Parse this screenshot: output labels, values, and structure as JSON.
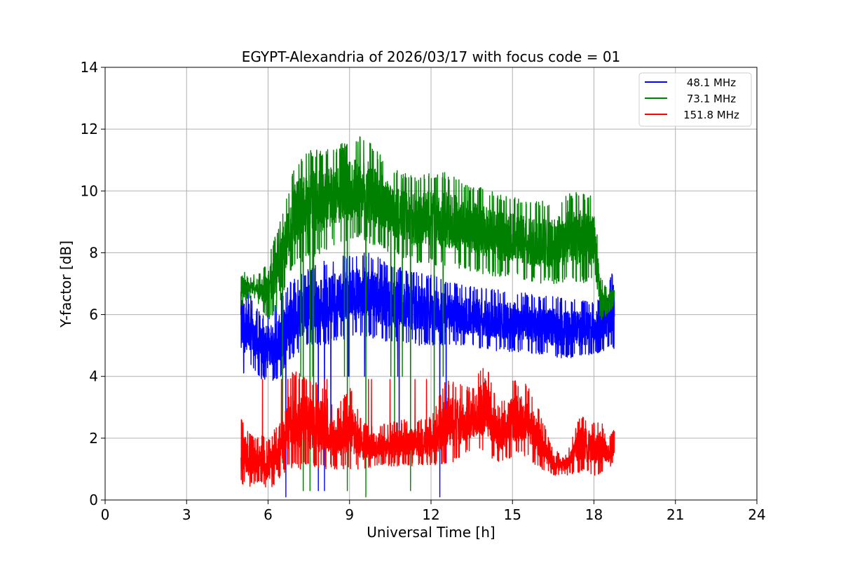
{
  "chart_data": {
    "type": "line",
    "title": "EGYPT-Alexandria of 2026/03/17 with focus code = 01",
    "xlabel": "Universal Time [h]",
    "ylabel": "Y-factor [dB]",
    "xlim": [
      0,
      24
    ],
    "ylim": [
      0,
      14
    ],
    "xticks": [
      0,
      3,
      6,
      9,
      12,
      15,
      18,
      21,
      24
    ],
    "yticks": [
      0,
      2,
      4,
      6,
      8,
      10,
      12,
      14
    ],
    "grid": true,
    "legend_position": "top-right",
    "series": [
      {
        "name": "48.1 MHz",
        "color": "#0000ff",
        "x": [
          5.0,
          5.25,
          5.5,
          5.75,
          6.0,
          6.25,
          6.5,
          6.75,
          7.0,
          7.5,
          8.0,
          8.5,
          9.0,
          9.5,
          10.0,
          10.5,
          11.0,
          11.5,
          12.0,
          12.5,
          13.0,
          13.5,
          14.0,
          14.5,
          15.0,
          15.5,
          16.0,
          16.5,
          17.0,
          17.5,
          18.0,
          18.25,
          18.5,
          18.75
        ],
        "low": [
          3.8,
          4.4,
          4.2,
          3.9,
          3.8,
          3.9,
          4.0,
          4.4,
          4.7,
          4.9,
          5.0,
          5.1,
          5.2,
          5.3,
          5.2,
          5.1,
          5.1,
          5.0,
          5.0,
          5.0,
          5.0,
          4.9,
          4.9,
          4.8,
          4.8,
          4.7,
          4.7,
          4.6,
          4.6,
          4.6,
          4.7,
          4.8,
          4.8,
          4.9
        ],
        "high": [
          7.5,
          7.0,
          6.3,
          6.0,
          6.1,
          6.4,
          6.7,
          7.0,
          7.2,
          7.5,
          7.7,
          7.9,
          8.0,
          8.1,
          7.9,
          7.6,
          7.5,
          7.4,
          7.3,
          7.1,
          7.0,
          6.9,
          6.9,
          6.8,
          6.8,
          6.7,
          6.6,
          6.6,
          6.5,
          6.5,
          6.4,
          6.6,
          7.0,
          7.6
        ]
      },
      {
        "name": "73.1 MHz",
        "color": "#008000",
        "x": [
          5.0,
          5.25,
          5.5,
          5.75,
          6.0,
          6.25,
          6.5,
          6.75,
          7.0,
          7.5,
          8.0,
          8.5,
          9.0,
          9.5,
          10.0,
          10.5,
          11.0,
          11.5,
          12.0,
          12.5,
          13.0,
          13.5,
          14.0,
          14.5,
          15.0,
          15.5,
          16.0,
          16.5,
          17.0,
          17.5,
          18.0,
          18.25,
          18.5,
          18.75
        ],
        "low": [
          6.2,
          6.5,
          6.5,
          6.2,
          5.8,
          6.0,
          6.3,
          7.2,
          7.6,
          7.8,
          8.0,
          8.3,
          8.4,
          8.4,
          8.2,
          8.0,
          7.8,
          7.6,
          7.6,
          7.5,
          7.5,
          7.4,
          7.3,
          7.2,
          7.2,
          7.1,
          7.0,
          7.0,
          7.0,
          7.0,
          7.0,
          5.8,
          6.0,
          6.3
        ],
        "high": [
          7.6,
          7.2,
          7.3,
          7.4,
          7.8,
          8.5,
          9.2,
          10.0,
          11.0,
          11.3,
          11.4,
          11.5,
          11.6,
          11.8,
          11.3,
          10.8,
          10.6,
          10.5,
          10.6,
          10.6,
          10.4,
          10.2,
          10.1,
          9.9,
          9.8,
          9.7,
          9.7,
          9.6,
          9.9,
          10.0,
          9.8,
          7.2,
          6.8,
          7.0
        ]
      },
      {
        "name": "151.8 MHz",
        "color": "#ff0000",
        "x": [
          5.0,
          5.25,
          5.5,
          5.75,
          6.0,
          6.25,
          6.5,
          6.75,
          7.0,
          7.5,
          8.0,
          8.5,
          9.0,
          9.5,
          10.0,
          10.5,
          11.0,
          11.5,
          12.0,
          12.5,
          13.0,
          13.5,
          14.0,
          14.5,
          15.0,
          15.5,
          16.0,
          16.5,
          17.0,
          17.5,
          18.0,
          18.25,
          18.5,
          18.75
        ],
        "low": [
          0.5,
          0.4,
          0.5,
          0.6,
          0.2,
          0.5,
          0.8,
          1.0,
          1.0,
          1.0,
          1.0,
          1.0,
          1.0,
          1.0,
          1.1,
          1.1,
          1.1,
          1.1,
          1.1,
          1.1,
          1.2,
          1.6,
          1.5,
          1.2,
          1.4,
          1.4,
          1.0,
          0.8,
          0.8,
          0.9,
          0.8,
          0.8,
          1.0,
          1.2
        ],
        "high": [
          2.7,
          2.3,
          2.0,
          2.1,
          2.0,
          2.3,
          2.6,
          4.1,
          4.2,
          3.9,
          3.8,
          2.9,
          3.8,
          2.5,
          2.4,
          2.5,
          2.6,
          2.6,
          2.7,
          3.9,
          3.8,
          3.6,
          4.6,
          3.0,
          3.9,
          3.8,
          2.9,
          1.6,
          1.5,
          2.8,
          2.5,
          2.6,
          2.0,
          2.3
        ]
      }
    ]
  }
}
